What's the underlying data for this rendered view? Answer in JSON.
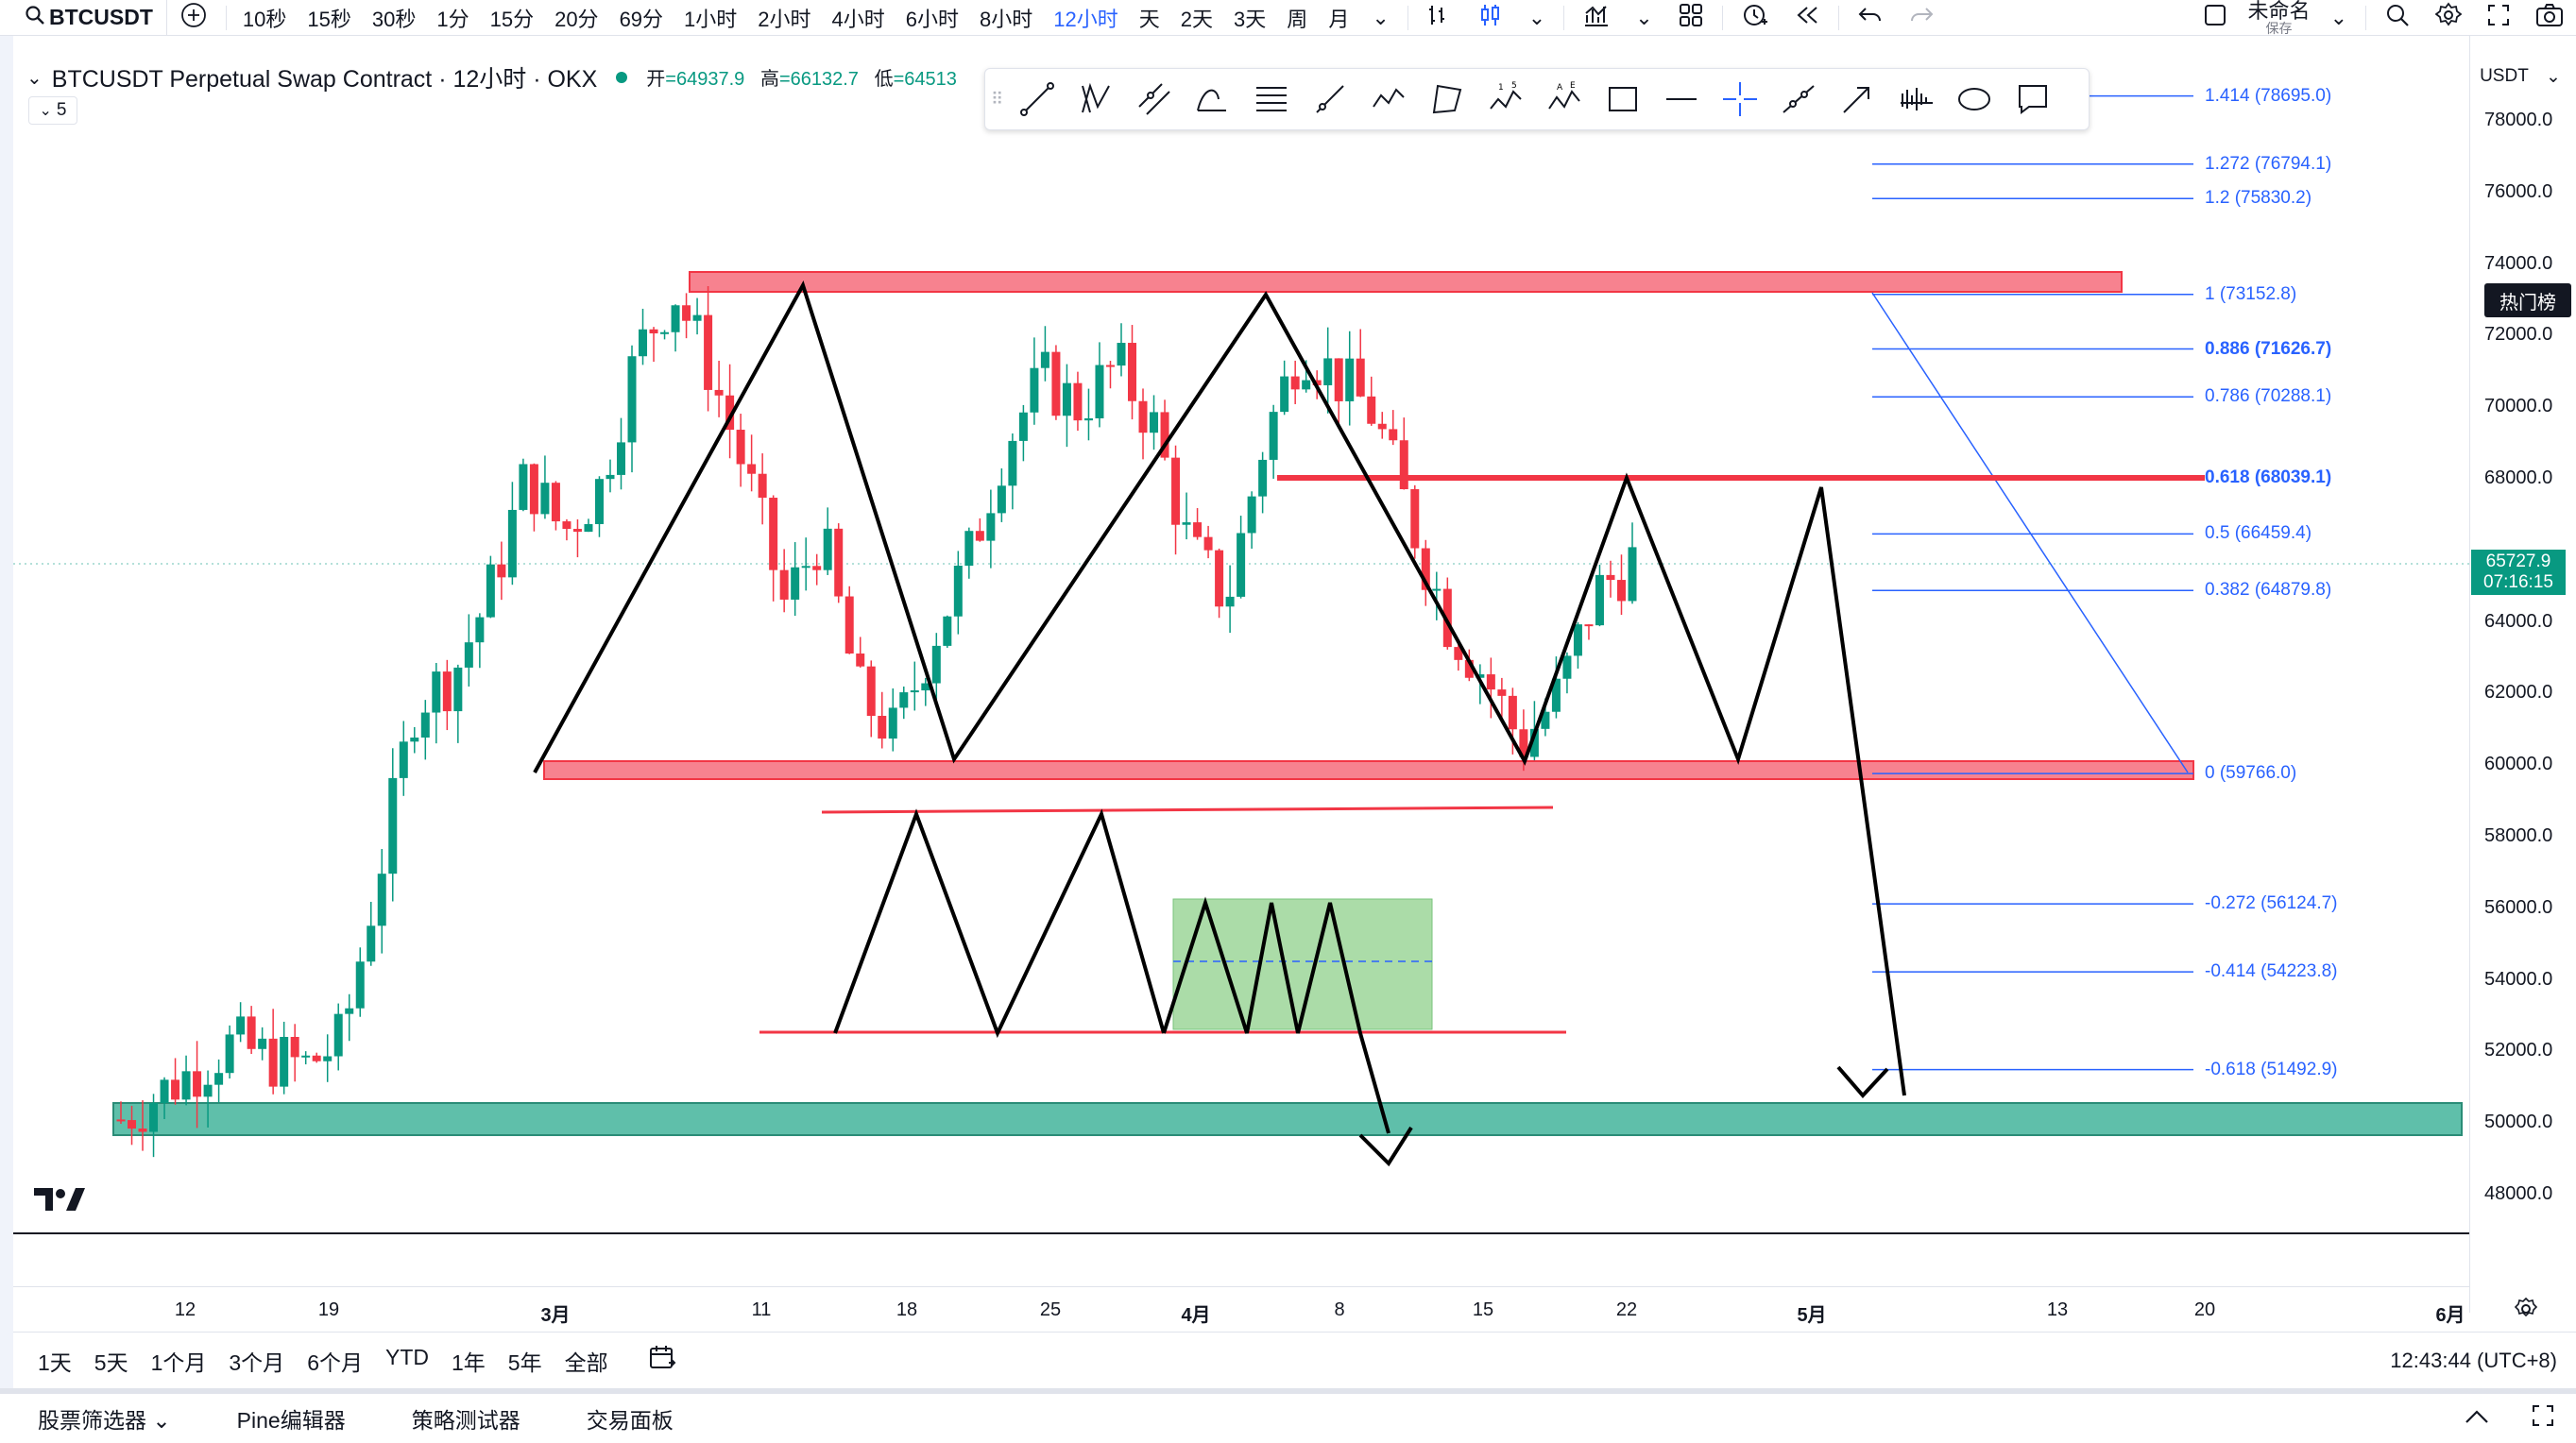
{
  "toolbar": {
    "symbol": "BTCUSDT",
    "intervals": [
      "10秒",
      "15秒",
      "30秒",
      "1分",
      "15分",
      "20分",
      "69分",
      "1小时",
      "2小时",
      "4小时",
      "6小时",
      "8小时",
      "12小时",
      "天",
      "2天",
      "3天",
      "周",
      "月"
    ],
    "active_interval": "12小时",
    "layout_name": "未命名",
    "save_label": "保存"
  },
  "legend": {
    "title": "BTCUSDT Perpetual Swap Contract · 12小时 · OKX",
    "open_label": "开",
    "open_value": "=64937.9",
    "high_label": "高",
    "high_value": "=66132.7",
    "low_label": "低",
    "low_value": "=64513",
    "indicator_count": "5"
  },
  "price_scale": {
    "currency": "USDT",
    "labels": [
      "78000.0",
      "76000.0",
      "74000.0",
      "72000.0",
      "70000.0",
      "68000.0",
      "64000.0",
      "62000.0",
      "60000.0",
      "58000.0",
      "56000.0",
      "54000.0",
      "52000.0",
      "50000.0",
      "48000.0"
    ],
    "last_price": "65727.9",
    "countdown": "07:16:15",
    "hot_list_label": "热门榜"
  },
  "fib_levels": [
    {
      "label": "1.414 (78695.0)",
      "price": 78695.0
    },
    {
      "label": "1.272 (76794.1)",
      "price": 76794.1
    },
    {
      "label": "1.2 (75830.2)",
      "price": 75830.2
    },
    {
      "label": "1 (73152.8)",
      "price": 73152.8
    },
    {
      "label": "0.886 (71626.7)",
      "price": 71626.7
    },
    {
      "label": "0.786 (70288.1)",
      "price": 70288.1
    },
    {
      "label": "0.618 (68039.1)",
      "price": 68039.1
    },
    {
      "label": "0.5 (66459.4)",
      "price": 66459.4
    },
    {
      "label": "0.382 (64879.8)",
      "price": 64879.8
    },
    {
      "label": "0 (59766.0)",
      "price": 59766.0
    },
    {
      "label": "-0.272 (56124.7)",
      "price": 56124.7
    },
    {
      "label": "-0.414 (54223.8)",
      "price": 54223.8
    },
    {
      "label": "-0.618 (51492.9)",
      "price": 51492.9
    }
  ],
  "time_axis": [
    "12",
    "19",
    "3月",
    "11",
    "18",
    "25",
    "4月",
    "8",
    "15",
    "22",
    "5月",
    "13",
    "20",
    "6月"
  ],
  "range_bar": [
    "1天",
    "5天",
    "1个月",
    "3个月",
    "6个月",
    "YTD",
    "1年",
    "5年",
    "全部"
  ],
  "clock": "12:43:44 (UTC+8)",
  "bottom_panel": [
    "股票筛选器",
    "Pine编辑器",
    "策略测试器",
    "交易面板"
  ],
  "colors": {
    "up": "#089981",
    "down": "#f23645",
    "fib": "#2962ff",
    "resistance_zone": "#f7828f",
    "support_zone": "#5fbfaa",
    "pattern_box": "#8fd18b"
  },
  "chart_data": {
    "type": "candlestick",
    "title": "BTCUSDT Perpetual Swap Contract · 12小时 · OKX",
    "y_unit": "USDT",
    "ylim": [
      47000,
      80000
    ],
    "x_ticks": [
      "12",
      "19",
      "3月",
      "11",
      "18",
      "25",
      "4月",
      "8",
      "15",
      "22",
      "5月",
      "13",
      "20",
      "6月"
    ],
    "last_price": 65727.9,
    "zones": [
      {
        "name": "resistance",
        "from": 73200,
        "to": 73800
      },
      {
        "name": "support",
        "from": 59766,
        "to": 60300
      },
      {
        "name": "demand",
        "from": 49700,
        "to": 50600
      }
    ],
    "candles_close_path": [
      50100,
      50800,
      51500,
      52200,
      51800,
      51600,
      52300,
      57000,
      61800,
      62500,
      64800,
      68100,
      66500,
      67800,
      71500,
      73300,
      71000,
      68000,
      64500,
      66500,
      62000,
      60800,
      63500,
      65800,
      69000,
      70800,
      70000,
      71200,
      69500,
      66000,
      64600,
      69000,
      71800,
      70800,
      69800,
      66800,
      64000,
      62500,
      60600,
      62000,
      64800,
      65728
    ]
  }
}
